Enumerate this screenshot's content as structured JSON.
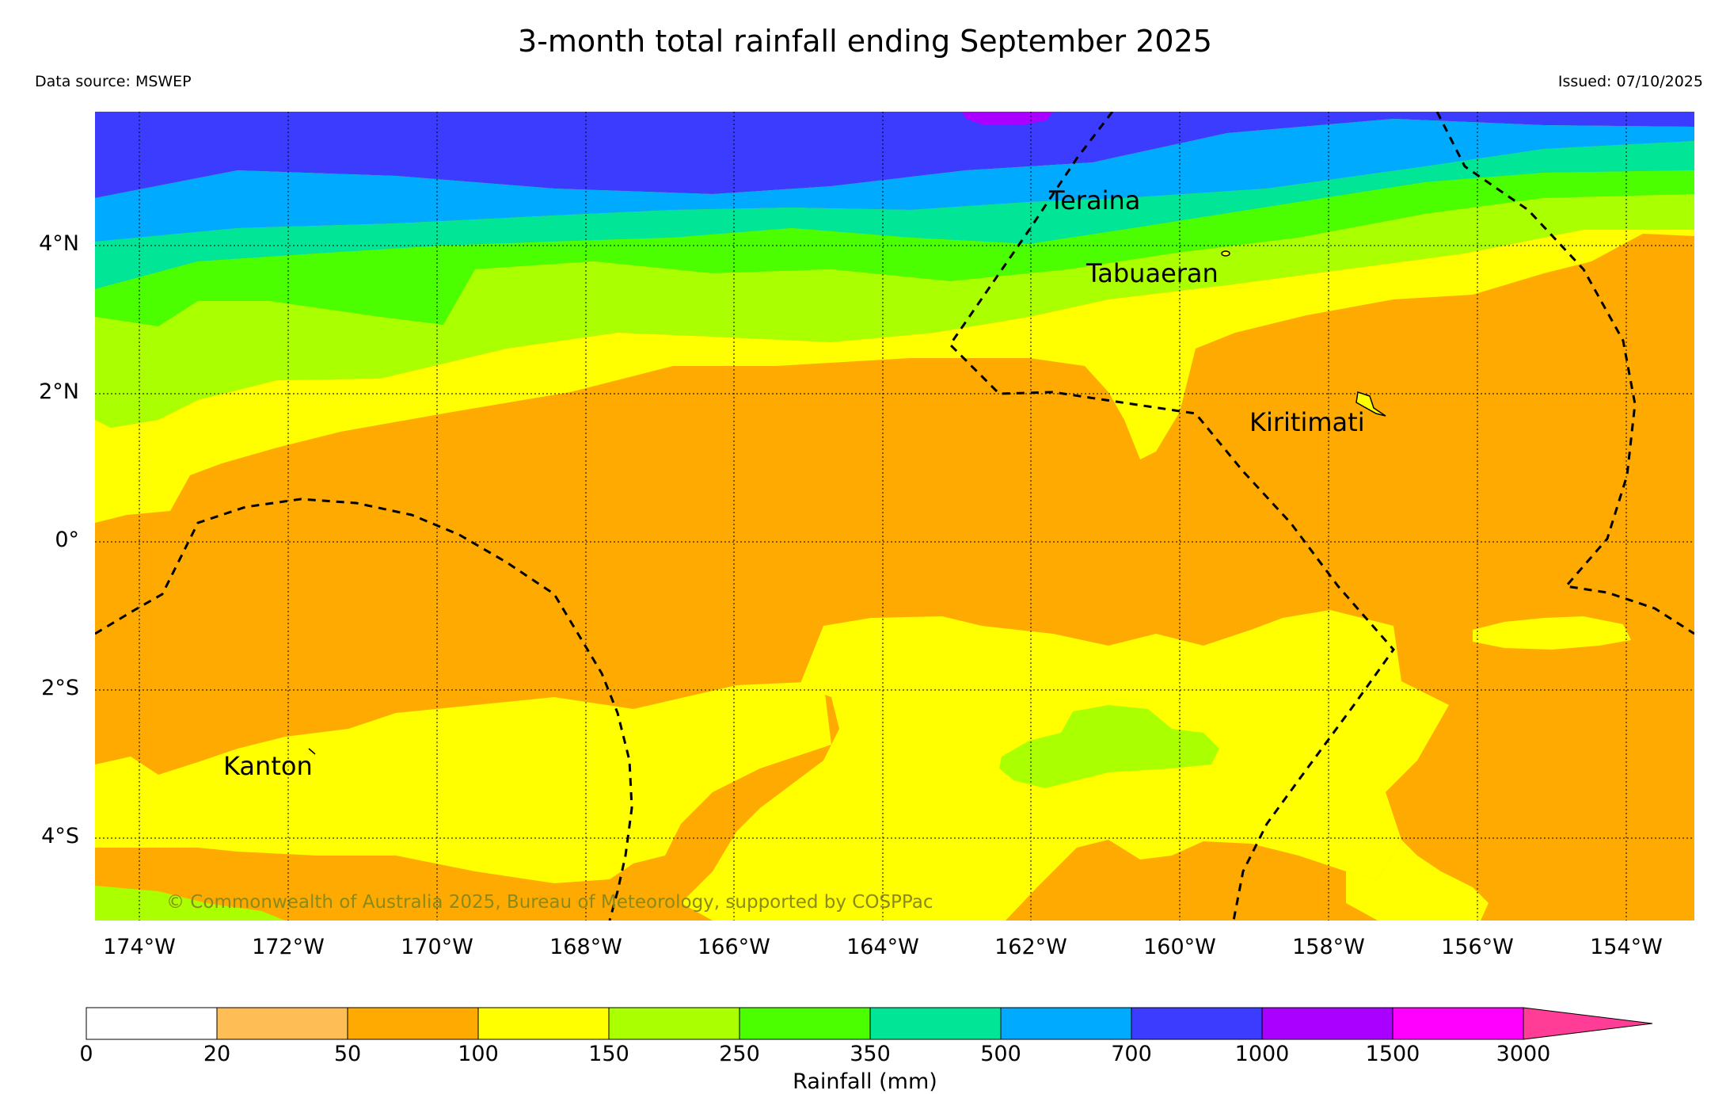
{
  "title": "3-month total rainfall ending September 2025",
  "data_source": "Data source: MSWEP",
  "issued": "Issued: 07/10/2025",
  "latitude_labels": [
    "4°N",
    "2°N",
    "0°",
    "2°S",
    "4°S"
  ],
  "longitude_labels": [
    "174°W",
    "172°W",
    "170°W",
    "168°W",
    "166°W",
    "164°W",
    "162°W",
    "160°W",
    "158°W",
    "156°W",
    "154°W"
  ],
  "places": {
    "teraina": "Teraina",
    "tabuaeran": "Tabuaeran",
    "kiritimati": "Kiritimati",
    "kanton": "Kanton"
  },
  "copyright": "© Commonwealth of Australia 2025, Bureau of Meteorology, supported by COSPPac",
  "colorbar": {
    "title": "Rainfall (mm)",
    "ticks": [
      "0",
      "20",
      "50",
      "100",
      "150",
      "250",
      "350",
      "500",
      "700",
      "1000",
      "1500",
      "3000"
    ],
    "colors": [
      "#ffffff",
      "#ffbe55",
      "#ffaa00",
      "#ffff00",
      "#aaff00",
      "#4cff00",
      "#00e696",
      "#00aaff",
      "#3c3cff",
      "#aa00ff",
      "#ff00ff",
      "#ff3c96"
    ]
  }
}
